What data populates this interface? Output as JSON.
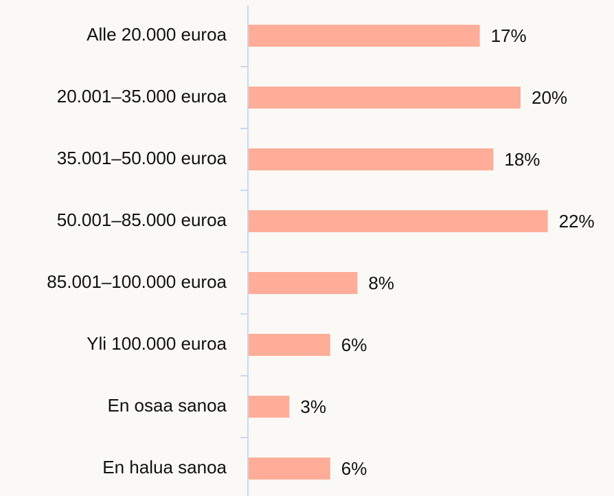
{
  "chart_data": {
    "type": "bar",
    "orientation": "horizontal",
    "categories": [
      "Alle 20.000 euroa",
      "20.001–35.000 euroa",
      "35.001–50.000 euroa",
      "50.001–85.000 euroa",
      "85.001–100.000 euroa",
      "Yli 100.000 euroa",
      "En osaa sanoa",
      "En halua sanoa"
    ],
    "values": [
      17,
      20,
      18,
      22,
      8,
      6,
      3,
      6
    ],
    "value_labels": [
      "17%",
      "20%",
      "18%",
      "22%",
      "8%",
      "6%",
      "3%",
      "6%"
    ],
    "color": "#ffad98"
  }
}
